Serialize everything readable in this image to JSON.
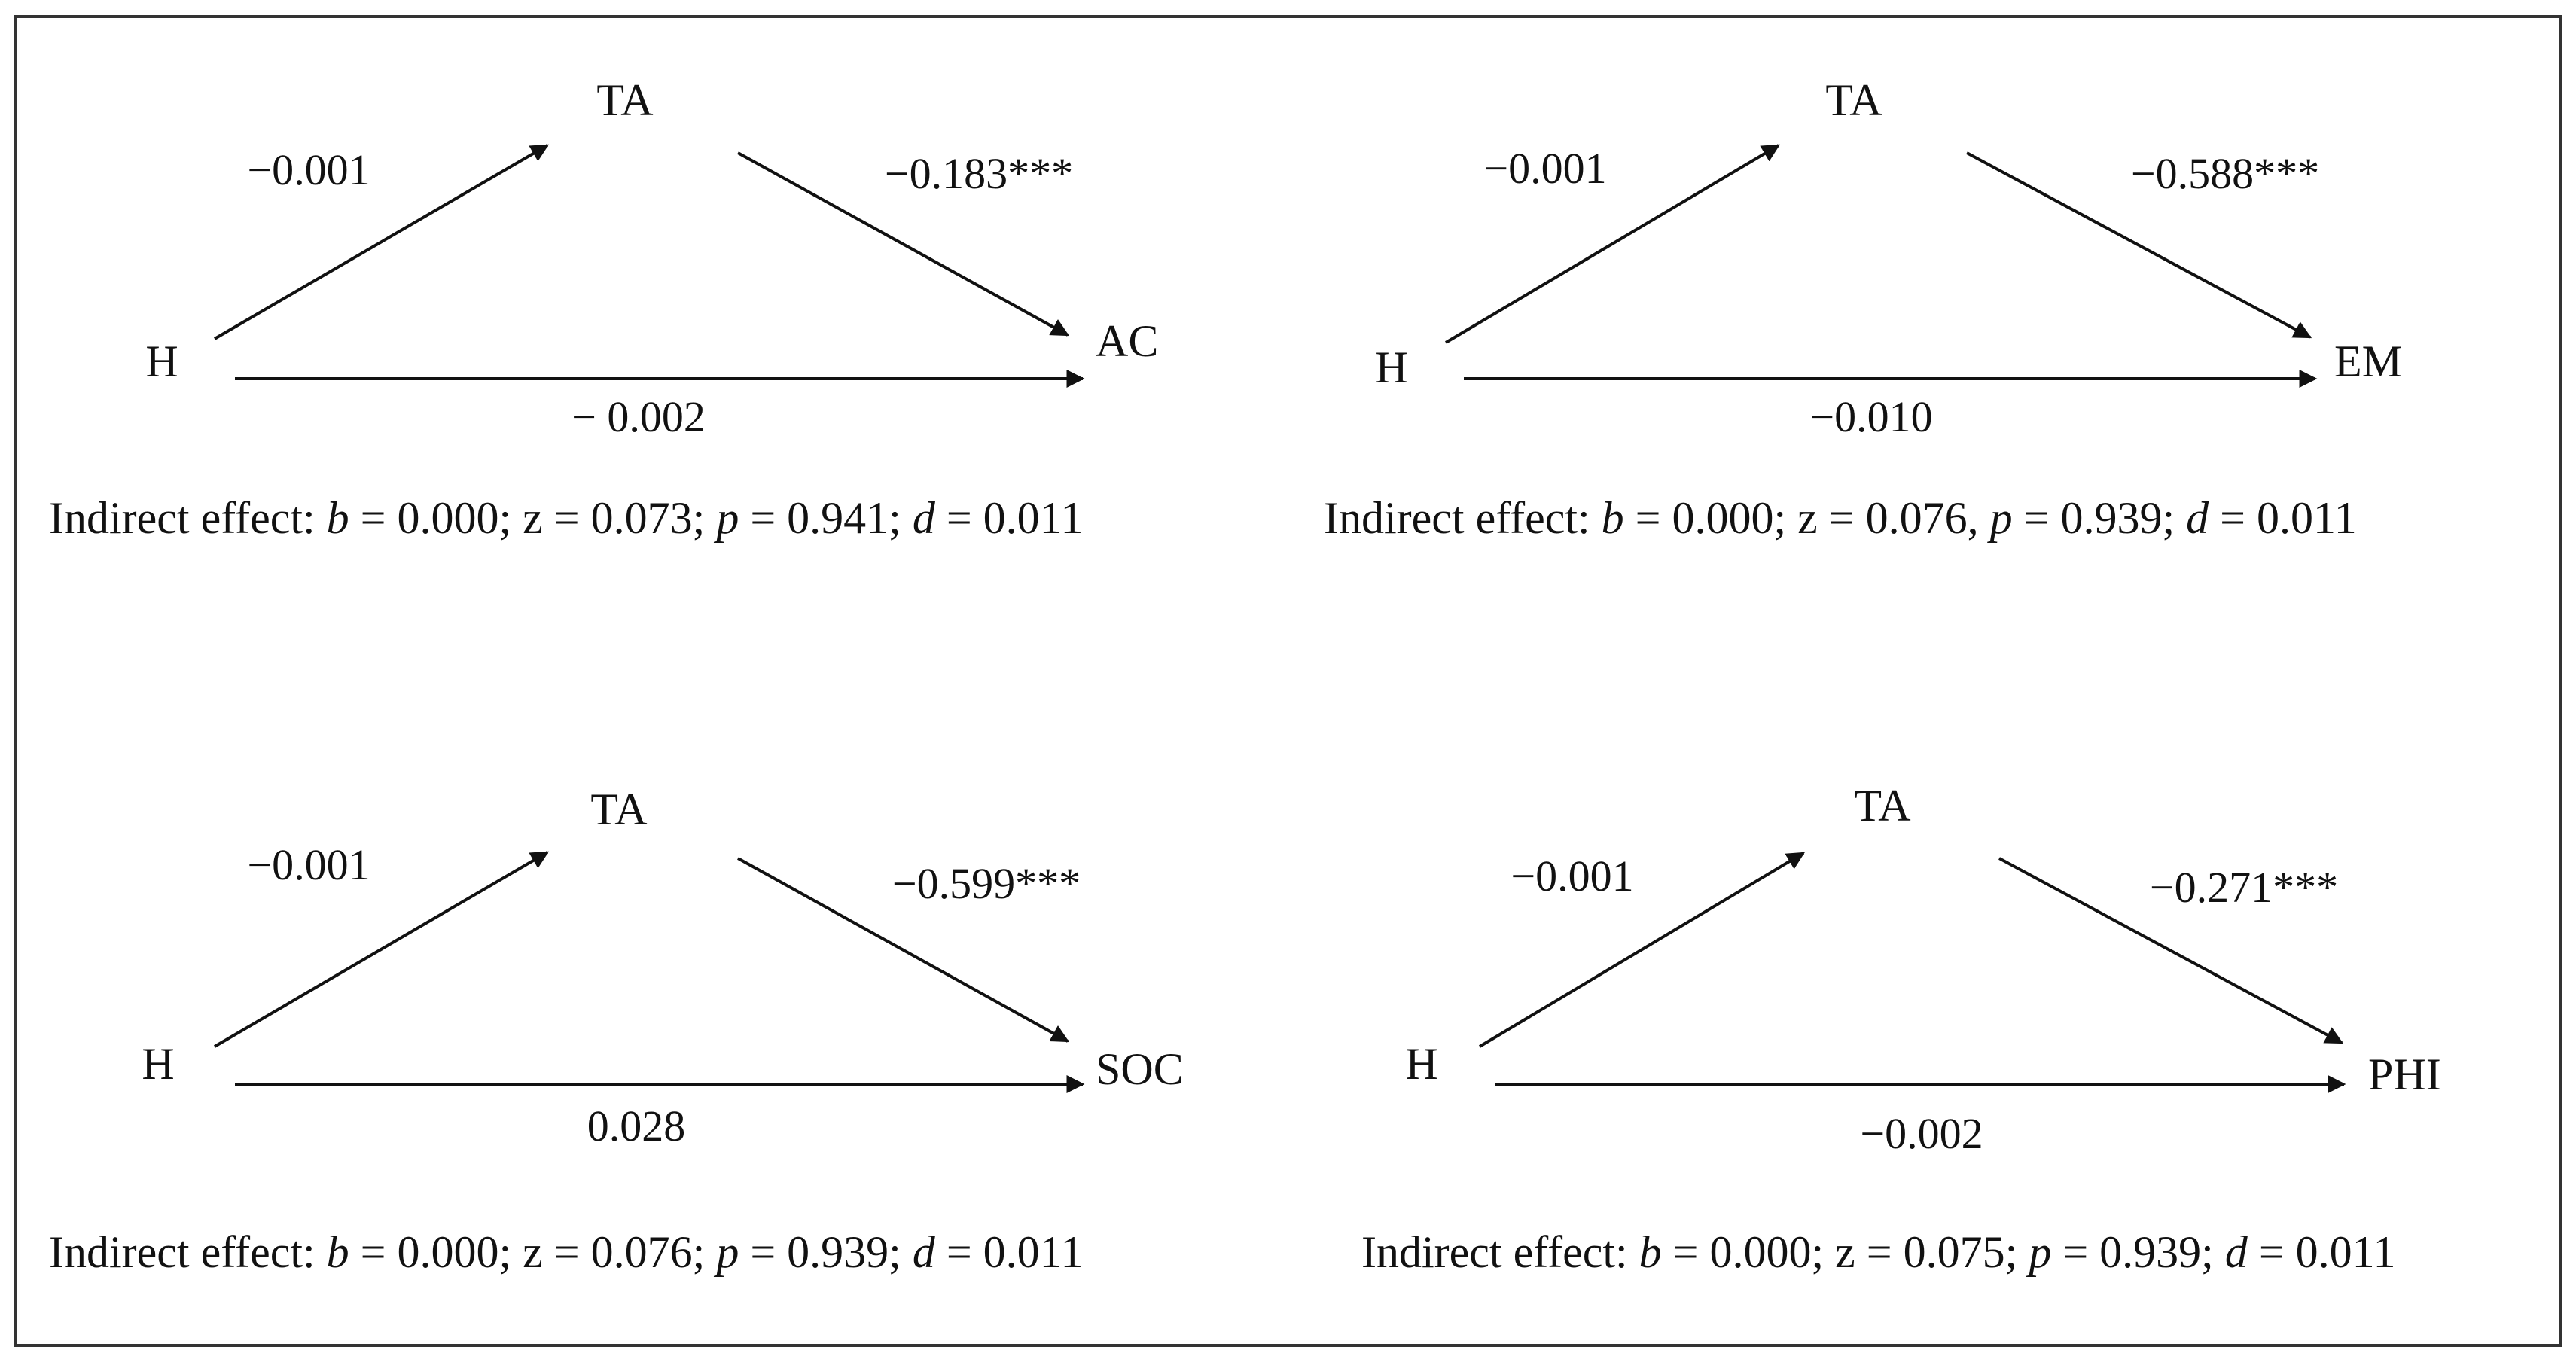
{
  "panels": [
    {
      "nodes": {
        "mediator": "TA",
        "predictor": "H",
        "outcome": "AC"
      },
      "paths": {
        "a": "−0.001",
        "b": "−0.183***",
        "c": "− 0.002"
      },
      "indirect": {
        "label": "Indirect effect: ",
        "b_symbol": "b",
        "b_value": " = 0.000; z = 0.073; ",
        "p_symbol": "p",
        "p_value": " = 0.941; ",
        "d_symbol": "d",
        "d_value": " = 0.011"
      }
    },
    {
      "nodes": {
        "mediator": "TA",
        "predictor": "H",
        "outcome": "EM"
      },
      "paths": {
        "a": "−0.001",
        "b": "−0.588***",
        "c": "−0.010"
      },
      "indirect": {
        "label": "Indirect effect: ",
        "b_symbol": "b",
        "b_value": " = 0.000; z = 0.076, ",
        "p_symbol": "p",
        "p_value": " = 0.939; ",
        "d_symbol": "d",
        "d_value": " = 0.011"
      }
    },
    {
      "nodes": {
        "mediator": "TA",
        "predictor": "H",
        "outcome": "SOC"
      },
      "paths": {
        "a": "−0.001",
        "b": "−0.599***",
        "c": "0.028"
      },
      "indirect": {
        "label": "Indirect effect: ",
        "b_symbol": "b",
        "b_value": " = 0.000; z = 0.076; ",
        "p_symbol": "p",
        "p_value": " = 0.939; ",
        "d_symbol": "d",
        "d_value": " = 0.011"
      }
    },
    {
      "nodes": {
        "mediator": "TA",
        "predictor": "H",
        "outcome": "PHI"
      },
      "paths": {
        "a": "−0.001",
        "b": "−0.271***",
        "c": "−0.002"
      },
      "indirect": {
        "label": "Indirect effect: ",
        "b_symbol": "b",
        "b_value": " = 0.000; z = 0.075; ",
        "p_symbol": "p",
        "p_value": " = 0.939; ",
        "d_symbol": "d",
        "d_value": " = 0.011"
      }
    }
  ]
}
